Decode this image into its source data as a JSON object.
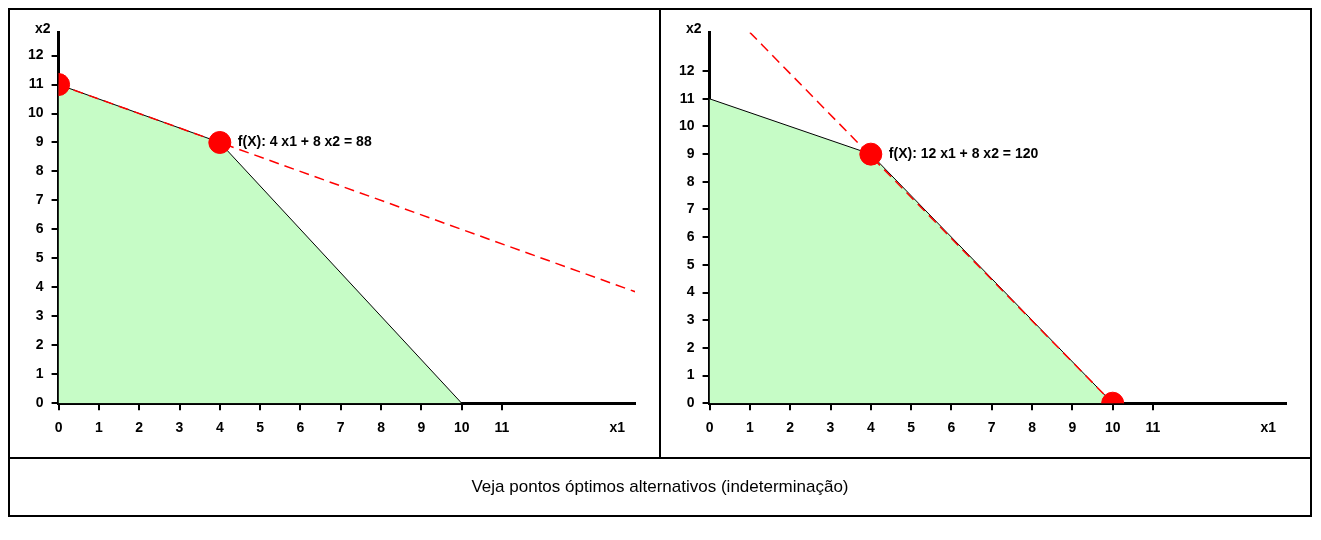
{
  "chart_data": [
    {
      "type": "area",
      "xlabel": "x1",
      "ylabel": "x2",
      "xlim": [
        0,
        14.3
      ],
      "ylim": [
        0,
        12.8
      ],
      "xticks": [
        0,
        1,
        2,
        3,
        4,
        5,
        6,
        7,
        8,
        9,
        10,
        11
      ],
      "yticks": [
        0,
        1,
        2,
        3,
        4,
        5,
        6,
        7,
        8,
        9,
        10,
        11,
        12
      ],
      "series": [
        {
          "color": "#c6fcc6",
          "x": [
            0,
            4,
            10
          ],
          "values": [
            11,
            9,
            0
          ]
        },
        {
          "type": "line",
          "color": "#ff0000",
          "line_style": "dashed",
          "x": [
            0,
            14.3
          ],
          "values": [
            11,
            3.85
          ]
        },
        {
          "type": "scatter",
          "color": "#ff0000",
          "marker": "circle",
          "x": [
            0,
            4
          ],
          "values": [
            11,
            9
          ]
        }
      ],
      "annotations": [
        {
          "text": "f(X): 4 x1 + 8 x2 = 88",
          "x": 4,
          "y": 9
        },
        "Veja pontos óptimos alternativos (indeterminação)"
      ]
    },
    {
      "type": "area",
      "xlabel": "x1",
      "ylabel": "x2",
      "xlim": [
        0,
        14.3
      ],
      "ylim": [
        0,
        13.4
      ],
      "xticks": [
        0,
        1,
        2,
        3,
        4,
        5,
        6,
        7,
        8,
        9,
        10,
        11
      ],
      "yticks": [
        0,
        1,
        2,
        3,
        4,
        5,
        6,
        7,
        8,
        9,
        10,
        11,
        12
      ],
      "series": [
        {
          "color": "#c6fcc6",
          "x": [
            0,
            4,
            10
          ],
          "values": [
            11,
            9,
            0
          ]
        },
        {
          "type": "line",
          "color": "#ff0000",
          "line_style": "dashed",
          "x": [
            1,
            10
          ],
          "values": [
            13.4,
            0
          ]
        },
        {
          "type": "scatter",
          "color": "#ff0000",
          "marker": "circle",
          "x": [
            4,
            10
          ],
          "values": [
            9,
            0
          ]
        }
      ],
      "annotations": [
        {
          "text": "f(X): 12 x1 + 8 x2 = 120",
          "x": 4,
          "y": 9
        }
      ]
    }
  ]
}
